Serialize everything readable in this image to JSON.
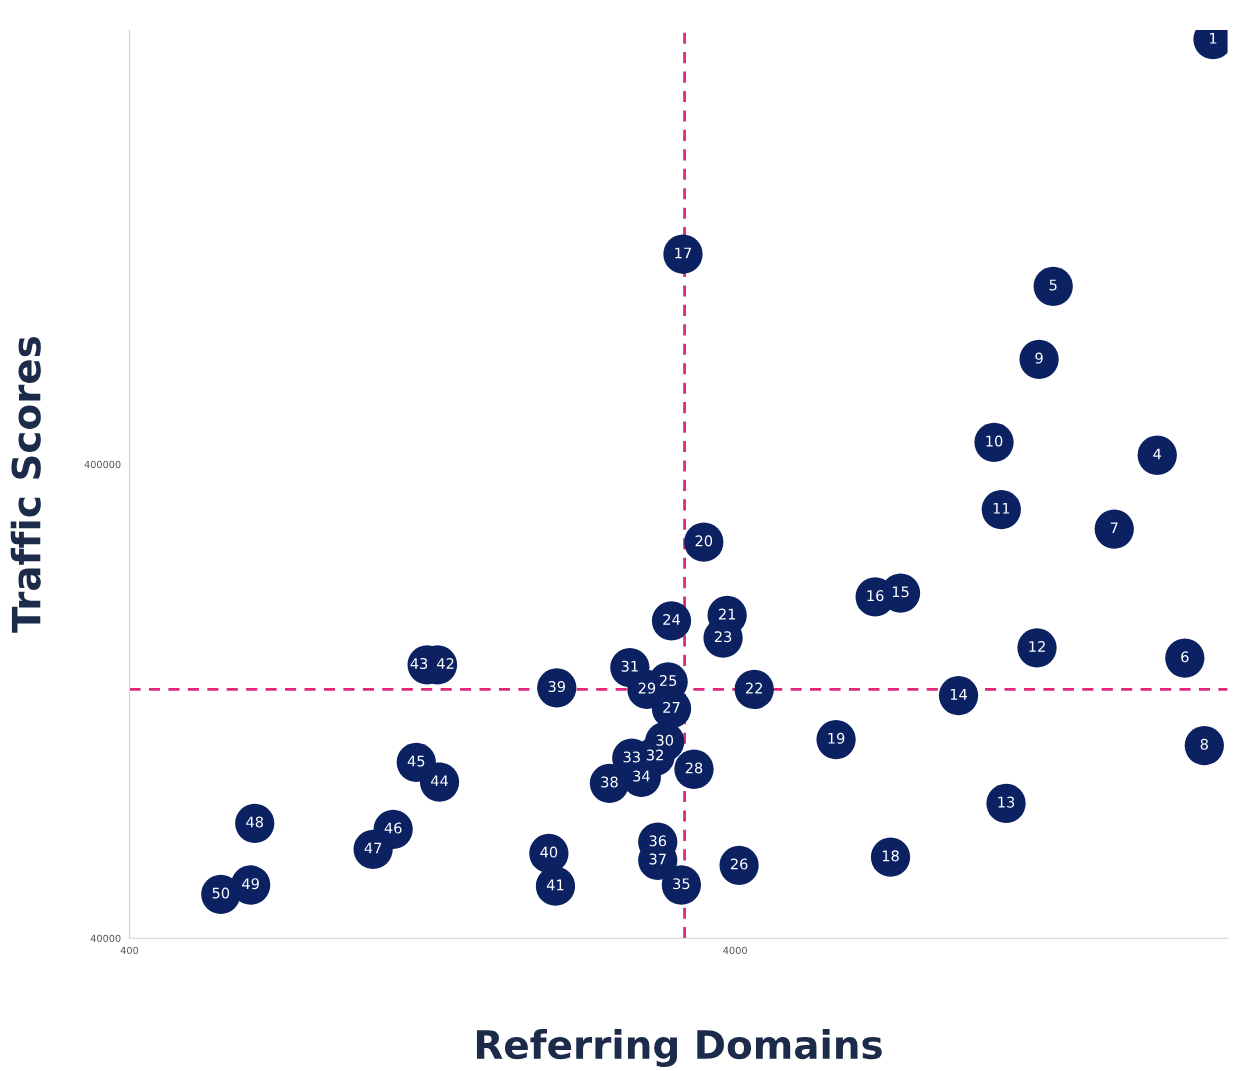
{
  "chart_data": {
    "type": "scatter",
    "xlabel": "Referring Domains",
    "ylabel": "Traffic Scores",
    "log": "xy",
    "xlim": [
      400,
      26000
    ],
    "ylim": [
      40000,
      3300000
    ],
    "xticks": [
      400,
      4000
    ],
    "yticks": [
      40000,
      400000
    ],
    "grid": false,
    "marker": "circle",
    "x": [
      24600,
      19900,
      13400,
      22100,
      16900,
      23800,
      12700,
      10700,
      11000,
      12600,
      11200,
      9350,
      7500,
      6810,
      3280,
      7220,
      5870,
      3550,
      3880,
      4300,
      3820,
      3140,
      3100,
      4060,
      3140,
      3420,
      2860,
      3060,
      2680,
      2950,
      2700,
      2800,
      3260,
      2980,
      2980,
      2480,
      2030,
      1970,
      2020,
      1290,
      1240,
      1300,
      1190,
      1090,
      1010,
      644,
      634,
      566
    ],
    "series": [
      {
        "color": "#0b2161",
        "values": [
          3150000,
          418000,
          950000,
          156000,
          292000,
          102000,
          666000,
          445000,
          321000,
          164000,
          77000,
          130000,
          214000,
          210000,
          1110000,
          59300,
          105000,
          274000,
          192000,
          134000,
          172000,
          187000,
          139000,
          57000,
          122000,
          90900,
          134000,
          104000,
          149000,
          96800,
          95900,
          87400,
          51800,
          63800,
          58400,
          84900,
          135000,
          60400,
          51500,
          151000,
          151000,
          85400,
          94000,
          67900,
          61600,
          69900,
          51800,
          49500
        ]
      }
    ],
    "annotations": [
      {
        "text": "1",
        "x": 24600,
        "y": 3150000
      },
      {
        "text": "4",
        "x": 19900,
        "y": 418000
      },
      {
        "text": "5",
        "x": 13400,
        "y": 950000
      },
      {
        "text": "6",
        "x": 22100,
        "y": 156000
      },
      {
        "text": "7",
        "x": 16900,
        "y": 292000
      },
      {
        "text": "8",
        "x": 23800,
        "y": 102000
      },
      {
        "text": "9",
        "x": 12700,
        "y": 666000
      },
      {
        "text": "10",
        "x": 10700,
        "y": 445000
      },
      {
        "text": "11",
        "x": 11000,
        "y": 321000
      },
      {
        "text": "12",
        "x": 12600,
        "y": 164000
      },
      {
        "text": "13",
        "x": 11200,
        "y": 77000
      },
      {
        "text": "14",
        "x": 9350,
        "y": 130000
      },
      {
        "text": "15",
        "x": 7500,
        "y": 214000
      },
      {
        "text": "16",
        "x": 6810,
        "y": 210000
      },
      {
        "text": "17",
        "x": 3280,
        "y": 1110000
      },
      {
        "text": "18",
        "x": 7220,
        "y": 59300
      },
      {
        "text": "19",
        "x": 5870,
        "y": 105000
      },
      {
        "text": "20",
        "x": 3550,
        "y": 274000
      },
      {
        "text": "21",
        "x": 3880,
        "y": 192000
      },
      {
        "text": "22",
        "x": 4300,
        "y": 134000
      },
      {
        "text": "23",
        "x": 3820,
        "y": 172000
      },
      {
        "text": "24",
        "x": 3140,
        "y": 187000
      },
      {
        "text": "25",
        "x": 3100,
        "y": 139000
      },
      {
        "text": "26",
        "x": 4060,
        "y": 57000
      },
      {
        "text": "27",
        "x": 3140,
        "y": 122000
      },
      {
        "text": "28",
        "x": 3420,
        "y": 90900
      },
      {
        "text": "29",
        "x": 2860,
        "y": 134000
      },
      {
        "text": "30",
        "x": 3060,
        "y": 104000
      },
      {
        "text": "31",
        "x": 2680,
        "y": 149000
      },
      {
        "text": "32",
        "x": 2950,
        "y": 96800
      },
      {
        "text": "33",
        "x": 2700,
        "y": 95900
      },
      {
        "text": "34",
        "x": 2800,
        "y": 87400
      },
      {
        "text": "35",
        "x": 3260,
        "y": 51800
      },
      {
        "text": "36",
        "x": 2980,
        "y": 63800
      },
      {
        "text": "37",
        "x": 2980,
        "y": 58400
      },
      {
        "text": "38",
        "x": 2480,
        "y": 84900
      },
      {
        "text": "39",
        "x": 2030,
        "y": 135000
      },
      {
        "text": "40",
        "x": 1970,
        "y": 60400
      },
      {
        "text": "41",
        "x": 2020,
        "y": 51500
      },
      {
        "text": "42",
        "x": 1290,
        "y": 151000
      },
      {
        "text": "43",
        "x": 1240,
        "y": 151000
      },
      {
        "text": "44",
        "x": 1300,
        "y": 85400
      },
      {
        "text": "45",
        "x": 1190,
        "y": 94000
      },
      {
        "text": "46",
        "x": 1090,
        "y": 67900
      },
      {
        "text": "47",
        "x": 1010,
        "y": 61600
      },
      {
        "text": "48",
        "x": 644,
        "y": 69900
      },
      {
        "text": "49",
        "x": 634,
        "y": 51800
      },
      {
        "text": "50",
        "x": 566,
        "y": 49500
      }
    ],
    "ref_lines": [
      {
        "axis": "x",
        "value": 3300,
        "color": "#e0287a",
        "line_style": "dashed"
      },
      {
        "axis": "y",
        "value": 134000,
        "color": "#e0287a",
        "line_style": "dashed"
      }
    ]
  }
}
